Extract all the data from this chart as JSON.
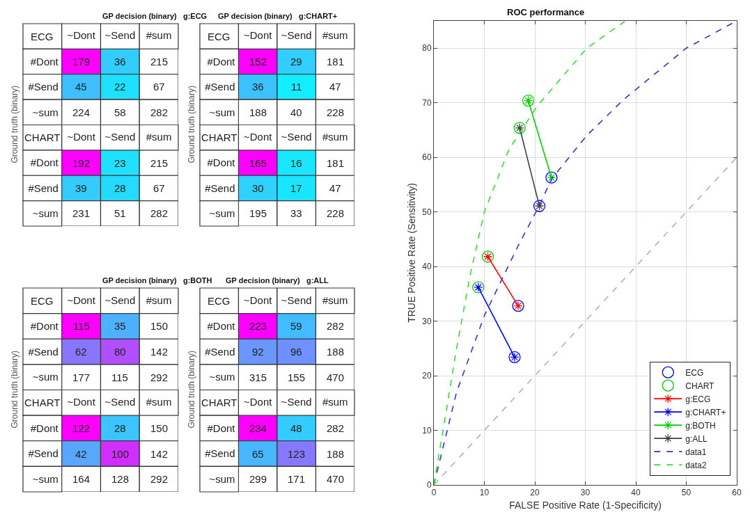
{
  "chart_data": [
    {
      "type": "heatmap",
      "title": "GP decision (binary)   g:ECG",
      "ylabel": "Ground truth (binary)",
      "xlabel": "ECG",
      "data_labels": true,
      "categories": [
        "~Dont",
        "~Send",
        "#sum"
      ],
      "y_categories": [
        "#Dont",
        "#Send",
        "~sum"
      ],
      "cells": [
        [
          179,
          36,
          215
        ],
        [
          45,
          22,
          67
        ],
        [
          224,
          58,
          282
        ]
      ]
    },
    {
      "type": "heatmap",
      "xlabel": "CHART",
      "data_labels": true,
      "categories": [
        "~Dont",
        "~Send",
        "#sum"
      ],
      "y_categories": [
        "#Dont",
        "#Send",
        "~sum"
      ],
      "cells": [
        [
          192,
          23,
          215
        ],
        [
          39,
          28,
          67
        ],
        [
          231,
          51,
          282
        ]
      ]
    },
    {
      "type": "heatmap",
      "title": "GP decision (binary)   g:CHART+",
      "ylabel": "Ground truth (binary)",
      "xlabel": "ECG",
      "data_labels": true,
      "categories": [
        "~Dont",
        "~Send",
        "#sum"
      ],
      "y_categories": [
        "#Dont",
        "#Send",
        "~sum"
      ],
      "cells": [
        [
          152,
          29,
          181
        ],
        [
          36,
          11,
          47
        ],
        [
          188,
          40,
          228
        ]
      ]
    },
    {
      "type": "heatmap",
      "xlabel": "CHART",
      "data_labels": true,
      "categories": [
        "~Dont",
        "~Send",
        "#sum"
      ],
      "y_categories": [
        "#Dont",
        "#Send",
        "~sum"
      ],
      "cells": [
        [
          165,
          16,
          181
        ],
        [
          30,
          17,
          47
        ],
        [
          195,
          33,
          228
        ]
      ]
    },
    {
      "type": "heatmap",
      "title": "GP decision (binary)   g:BOTH",
      "ylabel": "Ground truth (binary)",
      "xlabel": "ECG",
      "data_labels": true,
      "categories": [
        "~Dont",
        "~Send",
        "#sum"
      ],
      "y_categories": [
        "#Dont",
        "#Send",
        "~sum"
      ],
      "cells": [
        [
          115,
          35,
          150
        ],
        [
          62,
          80,
          142
        ],
        [
          177,
          115,
          292
        ]
      ]
    },
    {
      "type": "heatmap",
      "xlabel": "CHART",
      "data_labels": true,
      "categories": [
        "~Dont",
        "~Send",
        "#sum"
      ],
      "y_categories": [
        "#Dont",
        "#Send",
        "~sum"
      ],
      "cells": [
        [
          122,
          28,
          150
        ],
        [
          42,
          100,
          142
        ],
        [
          164,
          128,
          292
        ]
      ]
    },
    {
      "type": "heatmap",
      "title": "GP decision (binary)   g:ALL",
      "ylabel": "Ground truth (binary)",
      "xlabel": "ECG",
      "data_labels": true,
      "categories": [
        "~Dont",
        "~Send",
        "#sum"
      ],
      "y_categories": [
        "#Dont",
        "#Send",
        "~sum"
      ],
      "cells": [
        [
          223,
          59,
          282
        ],
        [
          92,
          96,
          188
        ],
        [
          315,
          155,
          470
        ]
      ]
    },
    {
      "type": "heatmap",
      "xlabel": "CHART",
      "data_labels": true,
      "categories": [
        "~Dont",
        "~Send",
        "#sum"
      ],
      "y_categories": [
        "#Dont",
        "#Send",
        "~sum"
      ],
      "cells": [
        [
          234,
          48,
          282
        ],
        [
          65,
          123,
          188
        ],
        [
          299,
          171,
          470
        ]
      ]
    },
    {
      "type": "scatter",
      "title": "ROC performance",
      "xlabel": "FALSE Positive Rate (1-Specificity)",
      "ylabel": "TRUE Positive Rate (Sensitivity)",
      "xlim": [
        0,
        60
      ],
      "ylim": [
        0,
        85
      ],
      "xticks": [
        0,
        10,
        20,
        30,
        40,
        50,
        60
      ],
      "yticks": [
        0,
        10,
        20,
        30,
        40,
        50,
        60,
        70,
        80
      ],
      "grid": true,
      "legend": "bottom right",
      "series": [
        {
          "name": "ECG",
          "type": "scatter",
          "marker": "circle",
          "color": "#0000ff",
          "x": [
            16.7,
            16.0,
            23.3,
            20.9
          ],
          "values": [
            32.8,
            23.4,
            56.3,
            51.1
          ]
        },
        {
          "name": "CHART",
          "type": "scatter",
          "marker": "circle",
          "color": "#00cc00",
          "x": [
            10.7,
            8.8,
            18.7,
            17.0
          ],
          "values": [
            41.8,
            36.2,
            70.4,
            65.4
          ]
        },
        {
          "name": "g:ECG",
          "type": "line",
          "marker": "cross",
          "line_style": "solid",
          "color": "#ff0000",
          "x": [
            10.7,
            16.7
          ],
          "values": [
            41.8,
            32.8
          ]
        },
        {
          "name": "g:CHART+",
          "type": "line",
          "marker": "cross",
          "line_style": "solid",
          "color": "#0000ff",
          "x": [
            8.8,
            16.0
          ],
          "values": [
            36.2,
            23.4
          ]
        },
        {
          "name": "g:BOTH",
          "type": "line",
          "marker": "cross",
          "line_style": "solid",
          "color": "#00cc00",
          "x": [
            18.7,
            23.3
          ],
          "values": [
            70.4,
            56.3
          ]
        },
        {
          "name": "g:ALL",
          "type": "line",
          "marker": "cross",
          "line_style": "solid",
          "color": "#404040",
          "x": [
            17.0,
            20.9
          ],
          "values": [
            65.4,
            51.1
          ]
        },
        {
          "name": "data1",
          "type": "line",
          "marker": "none",
          "line_style": "dashed",
          "color": "#3333cc",
          "x": [
            0,
            4.5,
            10,
            16.8,
            20.8,
            23.3,
            30.3,
            37.6,
            50,
            60
          ],
          "values": [
            0,
            17,
            31,
            44,
            51,
            56,
            64,
            70.6,
            80,
            85
          ]
        },
        {
          "name": "data2",
          "type": "line",
          "marker": "none",
          "line_style": "dashed",
          "color": "#33dd33",
          "x": [
            0,
            2,
            4.5,
            7.2,
            10,
            14.9,
            20.4,
            30.3,
            37.8
          ],
          "values": [
            0,
            11,
            25,
            38.5,
            50,
            61.5,
            69.3,
            80,
            84.9
          ]
        },
        {
          "type": "line",
          "marker": "none",
          "line_style": "dashed",
          "color": "#b0b0b0",
          "x": [
            0,
            60
          ],
          "values": [
            0,
            60
          ]
        }
      ]
    }
  ]
}
